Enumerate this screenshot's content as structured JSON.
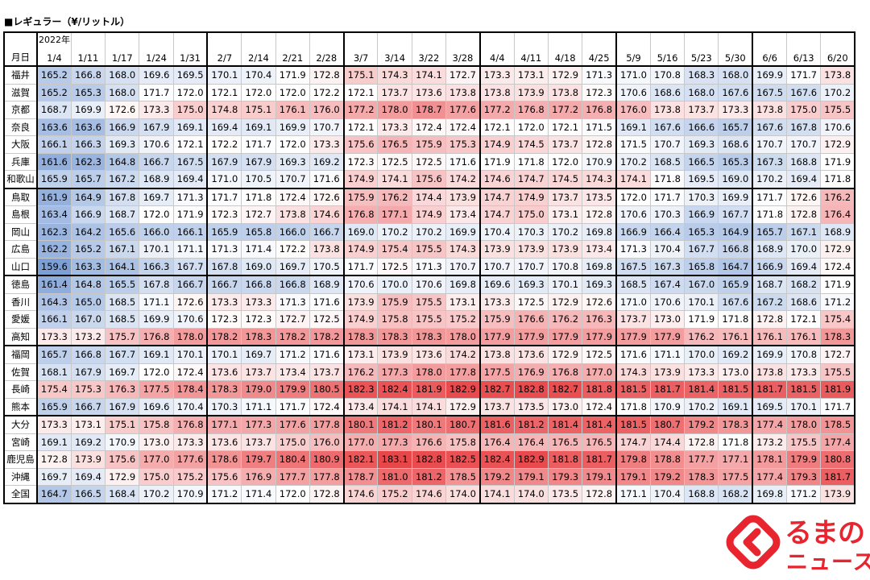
{
  "title": "■レギュラー（¥/リットル）",
  "header": {
    "row_label": "月日",
    "year_label": "2022年"
  },
  "logo": {
    "line1": "るまの",
    "line2": "ニュース",
    "icon": "kurumanews-logo-icon"
  },
  "colors": {
    "low": "#7c9fd6",
    "mid": "#ffffff",
    "high": "#e8474a",
    "logo": "#e8242e"
  },
  "chart_data": {
    "type": "table",
    "columns": [
      "1/4",
      "1/11",
      "1/17",
      "1/24",
      "1/31",
      "2/7",
      "2/14",
      "2/21",
      "2/28",
      "3/7",
      "3/14",
      "3/22",
      "3/28",
      "4/4",
      "4/11",
      "4/18",
      "4/25",
      "5/9",
      "5/16",
      "5/23",
      "5/30",
      "6/6",
      "6/13",
      "6/20"
    ],
    "month_starts": [
      0,
      5,
      9,
      13,
      17,
      21
    ],
    "group_starts": [
      0,
      7,
      12,
      16,
      20,
      28
    ],
    "rows": [
      {
        "pref": "福井",
        "values": [
          165.2,
          166.8,
          168.0,
          169.6,
          169.5,
          170.1,
          170.4,
          171.9,
          172.8,
          175.1,
          174.3,
          174.1,
          172.7,
          173.3,
          173.1,
          172.9,
          171.3,
          171.0,
          170.8,
          168.3,
          168.0,
          169.9,
          171.7,
          173.8
        ]
      },
      {
        "pref": "滋賀",
        "values": [
          165.2,
          165.3,
          168.0,
          171.7,
          172.0,
          172.1,
          172.0,
          172.0,
          172.2,
          172.1,
          173.7,
          173.6,
          173.8,
          173.8,
          173.9,
          173.8,
          172.3,
          170.6,
          168.6,
          168.0,
          167.6,
          167.5,
          167.6,
          170.2
        ]
      },
      {
        "pref": "京都",
        "values": [
          168.7,
          169.9,
          172.6,
          173.3,
          175.0,
          174.8,
          175.1,
          176.1,
          176.0,
          177.2,
          178.0,
          178.7,
          177.6,
          177.2,
          176.8,
          177.2,
          176.8,
          176.0,
          173.8,
          173.7,
          173.3,
          173.8,
          175.0,
          175.5
        ]
      },
      {
        "pref": "奈良",
        "values": [
          163.6,
          163.6,
          166.9,
          167.9,
          169.1,
          169.4,
          169.1,
          169.9,
          170.7,
          172.1,
          173.3,
          172.4,
          172.4,
          172.1,
          172.0,
          172.1,
          171.5,
          169.1,
          167.6,
          166.6,
          165.7,
          167.6,
          167.8,
          170.6
        ]
      },
      {
        "pref": "大阪",
        "values": [
          166.1,
          166.3,
          169.3,
          170.6,
          172.1,
          172.2,
          171.7,
          172.0,
          173.3,
          175.6,
          176.5,
          175.9,
          175.3,
          174.9,
          174.5,
          173.7,
          172.8,
          171.5,
          170.7,
          169.3,
          168.6,
          170.7,
          170.7,
          172.9
        ]
      },
      {
        "pref": "兵庫",
        "values": [
          161.6,
          162.3,
          164.8,
          166.7,
          167.5,
          167.9,
          167.9,
          169.3,
          169.2,
          172.3,
          172.5,
          172.5,
          171.6,
          171.9,
          171.8,
          172.0,
          170.9,
          170.2,
          168.5,
          166.5,
          165.3,
          167.3,
          168.8,
          171.9
        ]
      },
      {
        "pref": "和歌山",
        "values": [
          165.9,
          165.7,
          167.2,
          168.9,
          169.4,
          171.0,
          170.5,
          170.7,
          171.6,
          174.9,
          174.1,
          175.6,
          174.2,
          174.6,
          174.7,
          174.5,
          174.3,
          174.1,
          171.8,
          169.5,
          169.0,
          170.2,
          169.4,
          171.8
        ]
      },
      {
        "pref": "鳥取",
        "values": [
          161.9,
          164.9,
          167.8,
          169.7,
          171.3,
          171.7,
          171.8,
          172.4,
          172.6,
          175.9,
          176.2,
          174.4,
          173.9,
          174.7,
          174.9,
          173.7,
          173.5,
          172.0,
          171.7,
          170.3,
          169.9,
          171.7,
          172.6,
          176.2
        ]
      },
      {
        "pref": "島根",
        "values": [
          163.4,
          166.9,
          168.7,
          172.0,
          171.9,
          172.3,
          172.7,
          173.8,
          174.6,
          176.8,
          177.1,
          174.9,
          173.4,
          174.7,
          175.0,
          173.1,
          172.8,
          170.6,
          170.3,
          166.9,
          167.7,
          171.8,
          172.8,
          176.4
        ]
      },
      {
        "pref": "岡山",
        "values": [
          162.3,
          164.2,
          165.6,
          166.0,
          166.1,
          165.9,
          165.8,
          166.0,
          166.7,
          169.0,
          170.2,
          170.2,
          169.9,
          170.4,
          170.3,
          170.2,
          169.8,
          166.9,
          166.4,
          165.3,
          164.9,
          165.7,
          167.1,
          168.9
        ]
      },
      {
        "pref": "広島",
        "values": [
          162.2,
          165.2,
          167.1,
          170.1,
          171.1,
          171.3,
          171.4,
          172.2,
          173.8,
          174.9,
          175.4,
          175.5,
          174.3,
          173.9,
          173.9,
          173.9,
          173.4,
          171.3,
          170.4,
          167.7,
          166.8,
          168.9,
          170.0,
          172.9
        ]
      },
      {
        "pref": "山口",
        "values": [
          159.6,
          163.3,
          164.1,
          166.3,
          167.7,
          167.8,
          169.0,
          169.7,
          170.5,
          171.7,
          172.5,
          171.3,
          170.7,
          170.7,
          170.7,
          170.8,
          169.8,
          167.5,
          167.3,
          165.8,
          164.7,
          166.9,
          169.4,
          172.4
        ]
      },
      {
        "pref": "徳島",
        "values": [
          161.4,
          164.8,
          165.5,
          167.8,
          166.7,
          166.7,
          166.8,
          166.8,
          168.9,
          170.6,
          170.0,
          170.6,
          169.8,
          169.6,
          169.3,
          170.1,
          169.3,
          168.5,
          167.4,
          167.0,
          165.9,
          168.7,
          168.2,
          171.9
        ]
      },
      {
        "pref": "香川",
        "values": [
          164.3,
          165.0,
          168.5,
          171.1,
          172.6,
          173.3,
          173.3,
          171.3,
          171.6,
          173.9,
          175.9,
          175.5,
          173.1,
          173.3,
          172.5,
          172.9,
          172.6,
          171.0,
          170.6,
          170.1,
          167.6,
          167.2,
          168.6,
          171.2
        ]
      },
      {
        "pref": "愛媛",
        "values": [
          166.1,
          167.0,
          168.5,
          169.9,
          170.6,
          172.3,
          172.3,
          172.7,
          172.5,
          174.9,
          175.8,
          175.5,
          175.2,
          175.9,
          176.6,
          176.2,
          176.3,
          173.7,
          173.0,
          171.9,
          171.8,
          172.8,
          172.1,
          175.4
        ]
      },
      {
        "pref": "高知",
        "values": [
          173.3,
          173.2,
          175.7,
          176.8,
          178.0,
          178.2,
          178.3,
          178.2,
          178.2,
          178.3,
          178.3,
          178.3,
          178.0,
          177.9,
          177.9,
          177.9,
          177.9,
          177.9,
          177.9,
          176.2,
          176.1,
          176.1,
          176.1,
          178.3
        ]
      },
      {
        "pref": "福岡",
        "values": [
          165.7,
          166.8,
          167.7,
          169.1,
          170.1,
          170.1,
          169.7,
          171.2,
          171.6,
          173.1,
          173.9,
          173.6,
          174.2,
          173.8,
          173.6,
          172.9,
          172.5,
          171.6,
          171.1,
          170.0,
          169.2,
          169.9,
          170.8,
          172.7
        ]
      },
      {
        "pref": "佐賀",
        "values": [
          168.1,
          167.9,
          169.7,
          172.0,
          172.4,
          173.6,
          173.7,
          173.4,
          173.7,
          176.2,
          177.3,
          178.0,
          177.8,
          177.5,
          176.9,
          176.8,
          177.0,
          174.3,
          173.9,
          173.3,
          173.0,
          173.8,
          173.3,
          175.5
        ]
      },
      {
        "pref": "長崎",
        "values": [
          175.4,
          175.3,
          176.3,
          177.5,
          178.4,
          178.3,
          179.0,
          179.9,
          180.5,
          182.3,
          182.4,
          181.9,
          182.9,
          182.7,
          182.8,
          182.7,
          181.8,
          181.5,
          181.7,
          181.4,
          181.5,
          181.7,
          181.5,
          181.9
        ]
      },
      {
        "pref": "熊本",
        "values": [
          165.9,
          166.7,
          167.9,
          169.6,
          170.4,
          170.3,
          171.1,
          171.7,
          172.4,
          173.4,
          174.1,
          174.1,
          172.9,
          173.7,
          173.5,
          173.0,
          172.4,
          171.8,
          170.9,
          170.2,
          169.1,
          169.5,
          170.1,
          171.7
        ]
      },
      {
        "pref": "大分",
        "values": [
          173.3,
          173.1,
          175.1,
          175.8,
          176.8,
          177.1,
          177.3,
          177.6,
          177.8,
          180.1,
          181.2,
          180.1,
          180.7,
          181.6,
          181.2,
          181.4,
          181.4,
          181.5,
          180.7,
          179.2,
          178.3,
          177.4,
          178.0,
          178.5
        ]
      },
      {
        "pref": "宮崎",
        "values": [
          169.1,
          169.2,
          170.9,
          173.0,
          173.3,
          173.6,
          173.7,
          175.0,
          176.0,
          177.0,
          177.3,
          176.6,
          175.8,
          176.4,
          176.4,
          176.5,
          176.5,
          174.7,
          174.4,
          172.8,
          171.8,
          173.2,
          175.5,
          177.4
        ]
      },
      {
        "pref": "鹿児島",
        "values": [
          172.8,
          173.9,
          175.6,
          177.0,
          177.6,
          178.6,
          179.7,
          180.4,
          180.9,
          182.1,
          183.1,
          182.8,
          182.5,
          182.4,
          182.9,
          181.8,
          181.7,
          179.8,
          178.8,
          177.7,
          177.1,
          178.1,
          179.9,
          180.8
        ]
      },
      {
        "pref": "沖縄",
        "values": [
          169.7,
          169.4,
          172.9,
          175.0,
          175.2,
          175.6,
          176.9,
          177.7,
          177.8,
          178.7,
          181.0,
          181.2,
          178.5,
          179.2,
          179.1,
          179.3,
          179.1,
          179.1,
          179.2,
          178.3,
          177.5,
          177.4,
          179.3,
          181.7
        ]
      },
      {
        "pref": "全国",
        "values": [
          164.7,
          166.5,
          168.4,
          170.2,
          170.9,
          171.2,
          171.4,
          172.0,
          172.8,
          174.6,
          175.2,
          174.6,
          174.0,
          174.1,
          174.0,
          173.5,
          172.8,
          171.1,
          170.4,
          168.8,
          168.2,
          169.8,
          171.2,
          173.9
        ]
      }
    ]
  }
}
